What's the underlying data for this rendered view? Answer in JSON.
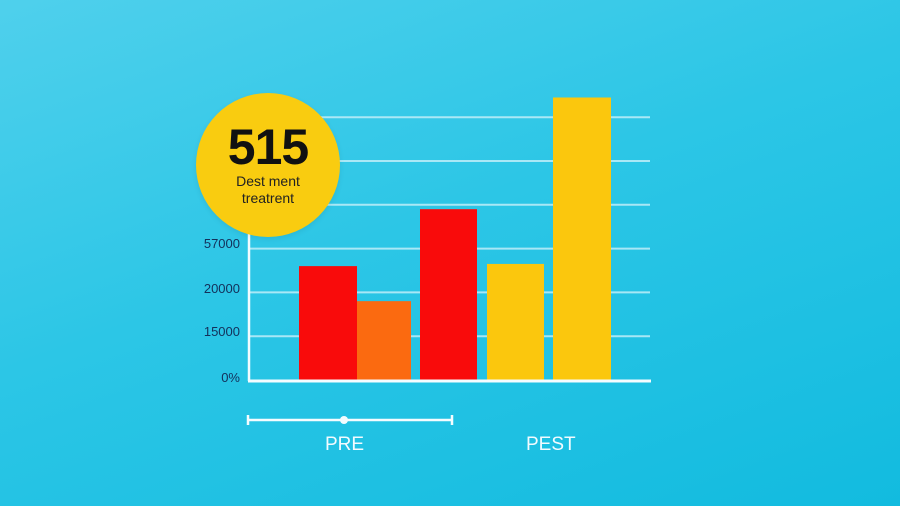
{
  "badge": {
    "value": "515",
    "line1": "Dest ment",
    "line2": "treatrent"
  },
  "chart_data": {
    "type": "bar",
    "ylim": [
      0,
      6.6
    ],
    "gridlines": 6,
    "grid": true,
    "ytick_labels": [
      {
        "level": 0,
        "label": "0%"
      },
      {
        "level": 1,
        "label": "15000"
      },
      {
        "level": 2,
        "label": "20000"
      },
      {
        "level": 3,
        "label": "57000"
      }
    ],
    "categories": [
      "PRE",
      "PEST"
    ],
    "bars": [
      {
        "group": "PRE",
        "value": 2.6,
        "color": "#f90b0b"
      },
      {
        "group": "PRE",
        "value": 1.8,
        "color": "#fb6a10"
      },
      {
        "group": "PRE",
        "value": 3.9,
        "color": "#f90b0b"
      },
      {
        "group": "PEST",
        "value": 2.65,
        "color": "#fbc70d"
      },
      {
        "group": "PEST",
        "value": 6.45,
        "color": "#fbc70d"
      }
    ]
  }
}
